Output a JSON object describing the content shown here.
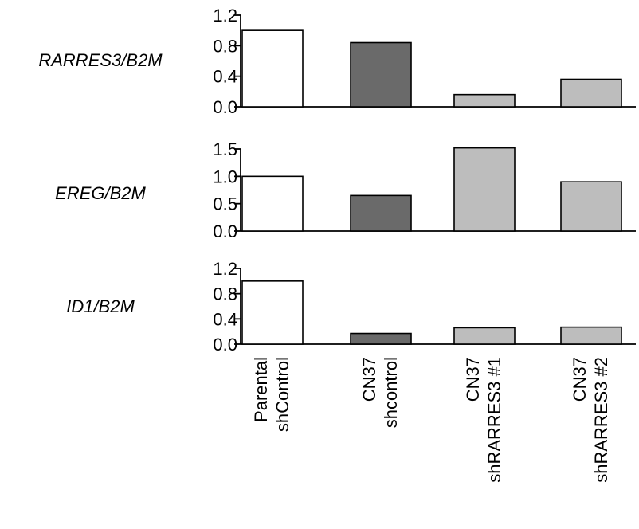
{
  "chart_data": [
    {
      "type": "bar",
      "ylabel": "RARRES3/B2M",
      "ylim": [
        0,
        1.2
      ],
      "yticks": [
        "0.0",
        "0.4",
        "0.8",
        "1.2"
      ],
      "categories": [
        "Parental shControl",
        "CN37 shcontrol",
        "CN37 shRARRES3 #1",
        "CN37 shRARRES3 #2"
      ],
      "values": [
        1.0,
        0.84,
        0.16,
        0.36
      ]
    },
    {
      "type": "bar",
      "ylabel": "EREG/B2M",
      "ylim": [
        0,
        1.5
      ],
      "yticks": [
        "0.0",
        "0.5",
        "1.0",
        "1.5"
      ],
      "categories": [
        "Parental shControl",
        "CN37 shcontrol",
        "CN37 shRARRES3 #1",
        "CN37 shRARRES3 #2"
      ],
      "values": [
        1.0,
        0.65,
        1.52,
        0.9
      ]
    },
    {
      "type": "bar",
      "ylabel": "ID1/B2M",
      "ylim": [
        0,
        1.2
      ],
      "yticks": [
        "0.0",
        "0.4",
        "0.8",
        "1.2"
      ],
      "categories": [
        "Parental shControl",
        "CN37 shcontrol",
        "CN37 shRARRES3 #1",
        "CN37 shRARRES3 #2"
      ],
      "values": [
        1.0,
        0.17,
        0.26,
        0.27
      ]
    }
  ],
  "x_labels": [
    {
      "line1": "Parental",
      "line2": "shControl"
    },
    {
      "line1": "CN37",
      "line2": "shcontrol"
    },
    {
      "line1": "CN37",
      "line2": "shRARRES3 #1"
    },
    {
      "line1": "CN37",
      "line2": "shRARRES3 #2"
    }
  ],
  "colors": {
    "parental": "#ffffff",
    "shcontrol": "#6a6a6a",
    "shrarres3": "#bdbdbd",
    "axis": "#000000"
  }
}
